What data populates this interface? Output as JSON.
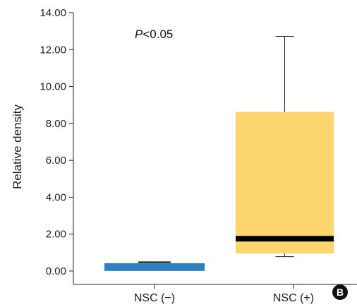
{
  "chart_data": {
    "type": "box",
    "ylabel": "Relative density",
    "ylim": [
      0,
      14
    ],
    "yticks": [
      "0.00",
      "2.00",
      "4.00",
      "6.00",
      "8.00",
      "10.00",
      "12.00",
      "14.00"
    ],
    "categories": [
      "NSC (−)",
      "NSC (+)"
    ],
    "boxes": [
      {
        "category": "NSC (−)",
        "whisker_low": 0.12,
        "q1": 0.12,
        "median": 0.42,
        "q3": 0.42,
        "whisker_high": 0.48,
        "color": "#2F7FC1"
      },
      {
        "category": "NSC (+)",
        "whisker_low": 0.78,
        "q1": 0.95,
        "median": 1.75,
        "q3": 8.62,
        "whisker_high": 12.72,
        "color": "#FCD56C"
      }
    ],
    "annotation": {
      "italic": "P",
      "rest": "<0.05"
    },
    "panel_label": "B"
  }
}
